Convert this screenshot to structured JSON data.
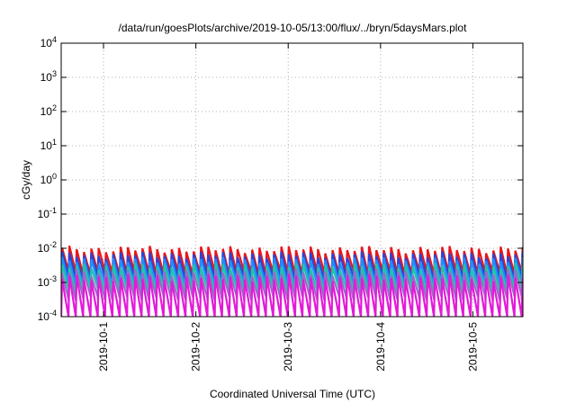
{
  "chart_data": {
    "type": "line",
    "title": "/data/run/goesPlots/archive/2019-10-05/13:00/flux/../bryn/5daysMars.plot",
    "xlabel": "Coordinated Universal Time (UTC)",
    "ylabel": "cGy/day",
    "y_scale": "log",
    "ylim": [
      0.0001,
      10000
    ],
    "y_ticks": [
      {
        "value": 0.0001,
        "base": "10",
        "exp": "-4"
      },
      {
        "value": 0.001,
        "base": "10",
        "exp": "-3"
      },
      {
        "value": 0.01,
        "base": "10",
        "exp": "-2"
      },
      {
        "value": 0.1,
        "base": "10",
        "exp": "-1"
      },
      {
        "value": 1,
        "base": "10",
        "exp": "0"
      },
      {
        "value": 10,
        "base": "10",
        "exp": "1"
      },
      {
        "value": 100,
        "base": "10",
        "exp": "2"
      },
      {
        "value": 1000,
        "base": "10",
        "exp": "3"
      },
      {
        "value": 10000,
        "base": "10",
        "exp": "4"
      }
    ],
    "xlim": [
      "2019-09-30T13:00",
      "2019-10-05T13:00"
    ],
    "x_ticks": [
      {
        "value": "2019-10-01T00:00",
        "label": "2019-10-1"
      },
      {
        "value": "2019-10-02T00:00",
        "label": "2019-10-2"
      },
      {
        "value": "2019-10-03T00:00",
        "label": "2019-10-3"
      },
      {
        "value": "2019-10-04T00:00",
        "label": "2019-10-4"
      },
      {
        "value": "2019-10-05T00:00",
        "label": "2019-10-5"
      }
    ],
    "grid": true,
    "sawtooth_cycle_hours": 1.9,
    "series": [
      {
        "color": "#e8161b",
        "peak": 0.0095,
        "trough": 0.0019
      },
      {
        "color": "#2a45d8",
        "peak": 0.0065,
        "trough": 0.0013
      },
      {
        "color": "#1e90ff",
        "peak": 0.0045,
        "trough": 0.0009
      },
      {
        "color": "#22c3a8",
        "peak": 0.003,
        "trough": 0.0006
      },
      {
        "color": "#9a6ac8",
        "peak": 0.002,
        "trough": 0.00035
      },
      {
        "color": "#e31ad8",
        "peak": 0.0014,
        "trough": 9e-05
      }
    ]
  }
}
